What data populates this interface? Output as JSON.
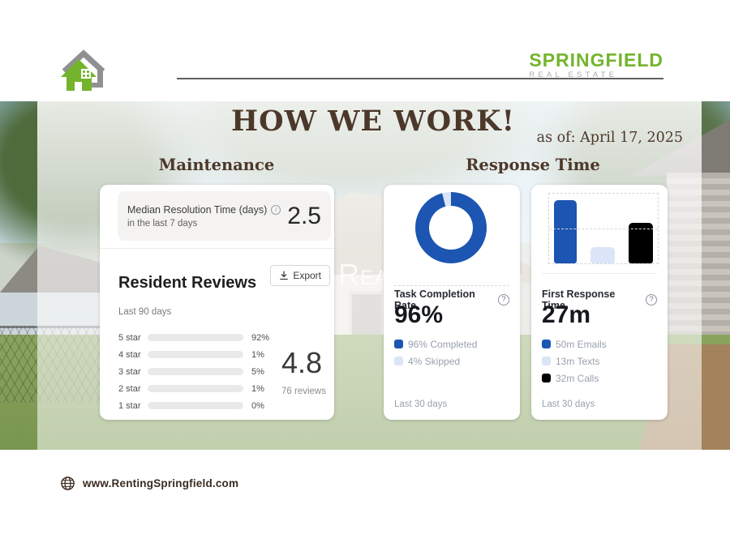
{
  "brand": {
    "wordmark": "SPRINGFIELD",
    "wordmark_sub": "REAL ESTATE",
    "green": "#74b42c"
  },
  "header": {
    "title": "HOW WE WORK!",
    "as_of": "as of: April 17, 2025"
  },
  "section_headers": {
    "left": "Maintenance",
    "right": "Response Time"
  },
  "maintenance_card": {
    "metric_label": "Median Resolution Time (days)",
    "metric_sublabel": "in the last 7 days",
    "metric_value": "2.5",
    "export_label": "Export",
    "reviews_title": "Resident Reviews",
    "reviews_period": "Last 90 days",
    "score": "4.8",
    "review_count": "76 reviews"
  },
  "completion_card": {
    "title": "Task Completion Rate",
    "headline": "96%",
    "period": "Last 30 days"
  },
  "response_card": {
    "title": "First Response Time",
    "headline": "27m",
    "period": "Last 30 days"
  },
  "watermark": "Rea",
  "footer": {
    "website": "www.RentingSpringfield.com"
  },
  "chart_data": [
    {
      "type": "bar",
      "orientation": "horizontal",
      "title": "Resident Reviews",
      "subtitle": "Last 90 days",
      "categories": [
        "5 star",
        "4 star",
        "3 star",
        "2 star",
        "1 star"
      ],
      "values": [
        92,
        1,
        5,
        1,
        0
      ],
      "value_labels": [
        "92%",
        "1%",
        "5%",
        "1%",
        "0%"
      ],
      "xlim": [
        0,
        100
      ],
      "bar_color": "#4d5bc9",
      "track_color": "#e9e9e9",
      "summary_score": "4.8",
      "summary_count": "76 reviews"
    },
    {
      "type": "pie",
      "donut": true,
      "title": "Task Completion Rate",
      "labels": [
        "Completed",
        "Skipped"
      ],
      "values": [
        96,
        4
      ],
      "colors": [
        "#1c55b2",
        "#dbe5f7"
      ],
      "headline": "96%",
      "legend": [
        "96% Completed",
        "4% Skipped"
      ],
      "period": "Last 30 days",
      "legend_position": "bottom"
    },
    {
      "type": "bar",
      "title": "First Response Time",
      "categories": [
        "Emails",
        "Texts",
        "Calls"
      ],
      "values": [
        50,
        13,
        32
      ],
      "unit": "minutes",
      "ylim": [
        0,
        55
      ],
      "colors": [
        "#1c55b2",
        "#dbe5f7",
        "#000000"
      ],
      "headline": "27m",
      "legend": [
        "50m Emails",
        "13m Texts",
        "32m Calls"
      ],
      "period": "Last 30 days",
      "grid": "dashed"
    }
  ]
}
